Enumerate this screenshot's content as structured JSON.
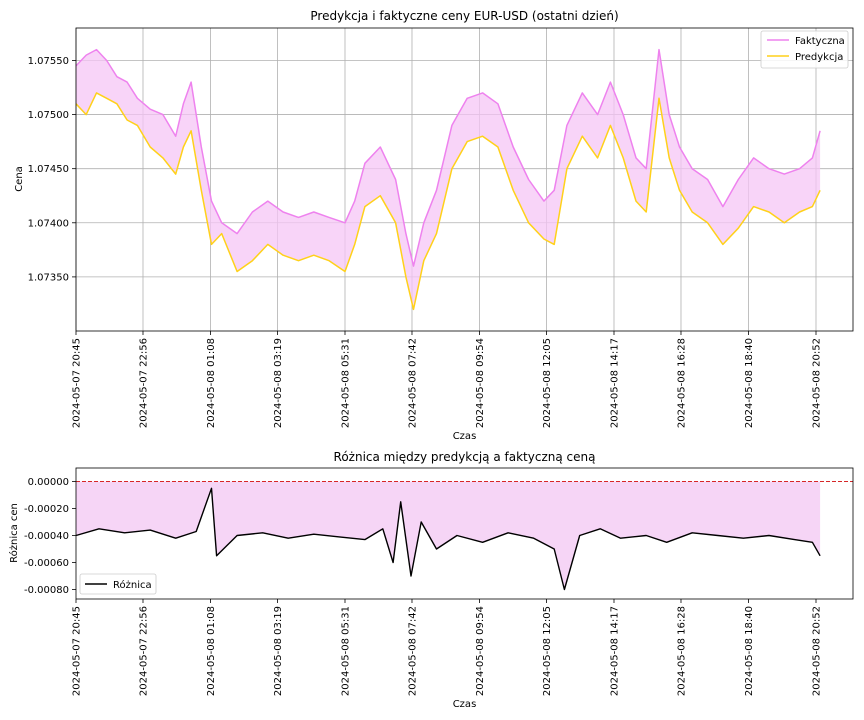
{
  "chart_data": [
    {
      "type": "line",
      "title": "Predykcja i faktyczne ceny EUR-USD (ostatni dzień)",
      "xlabel": "Czas",
      "ylabel": "Cena",
      "ylim": [
        1.073,
        1.0758
      ],
      "yticks": [
        "1.07350",
        "1.07400",
        "1.07450",
        "1.07500",
        "1.07550"
      ],
      "xticks": [
        "2024-05-07 20:45",
        "2024-05-07 22:56",
        "2024-05-08 01:08",
        "2024-05-08 03:19",
        "2024-05-08 05:31",
        "2024-05-08 07:42",
        "2024-05-08 09:54",
        "2024-05-08 12:05",
        "2024-05-08 14:17",
        "2024-05-08 16:28",
        "2024-05-08 18:40",
        "2024-05-08 20:52"
      ],
      "grid": true,
      "legend_position": "top-right",
      "fill_between": "Faktyczna / Predykcja",
      "series": [
        {
          "name": "Faktyczna",
          "color": "#ee82ee",
          "points": [
            [
              "2024-05-07 20:45",
              1.07545
            ],
            [
              "2024-05-07 21:05",
              1.07555
            ],
            [
              "2024-05-07 21:25",
              1.0756
            ],
            [
              "2024-05-07 21:45",
              1.0755
            ],
            [
              "2024-05-07 22:05",
              1.07535
            ],
            [
              "2024-05-07 22:25",
              1.0753
            ],
            [
              "2024-05-07 22:45",
              1.07515
            ],
            [
              "2024-05-07 23:10",
              1.07505
            ],
            [
              "2024-05-07 23:35",
              1.075
            ],
            [
              "2024-05-08 00:00",
              1.0748
            ],
            [
              "2024-05-08 00:15",
              1.0751
            ],
            [
              "2024-05-08 00:30",
              1.0753
            ],
            [
              "2024-05-08 00:50",
              1.0747
            ],
            [
              "2024-05-08 01:10",
              1.0742
            ],
            [
              "2024-05-08 01:30",
              1.074
            ],
            [
              "2024-05-08 02:00",
              1.0739
            ],
            [
              "2024-05-08 02:30",
              1.0741
            ],
            [
              "2024-05-08 03:00",
              1.0742
            ],
            [
              "2024-05-08 03:30",
              1.0741
            ],
            [
              "2024-05-08 04:00",
              1.07405
            ],
            [
              "2024-05-08 04:30",
              1.0741
            ],
            [
              "2024-05-08 05:00",
              1.07405
            ],
            [
              "2024-05-08 05:31",
              1.074
            ],
            [
              "2024-05-08 05:50",
              1.0742
            ],
            [
              "2024-05-08 06:10",
              1.07455
            ],
            [
              "2024-05-08 06:40",
              1.0747
            ],
            [
              "2024-05-08 07:10",
              1.0744
            ],
            [
              "2024-05-08 07:30",
              1.0739
            ],
            [
              "2024-05-08 07:45",
              1.0736
            ],
            [
              "2024-05-08 08:05",
              1.074
            ],
            [
              "2024-05-08 08:30",
              1.0743
            ],
            [
              "2024-05-08 09:00",
              1.0749
            ],
            [
              "2024-05-08 09:30",
              1.07515
            ],
            [
              "2024-05-08 10:00",
              1.0752
            ],
            [
              "2024-05-08 10:30",
              1.0751
            ],
            [
              "2024-05-08 11:00",
              1.0747
            ],
            [
              "2024-05-08 11:30",
              1.0744
            ],
            [
              "2024-05-08 12:00",
              1.0742
            ],
            [
              "2024-05-08 12:20",
              1.0743
            ],
            [
              "2024-05-08 12:45",
              1.0749
            ],
            [
              "2024-05-08 13:15",
              1.0752
            ],
            [
              "2024-05-08 13:45",
              1.075
            ],
            [
              "2024-05-08 14:10",
              1.0753
            ],
            [
              "2024-05-08 14:35",
              1.075
            ],
            [
              "2024-05-08 15:00",
              1.0746
            ],
            [
              "2024-05-08 15:20",
              1.0745
            ],
            [
              "2024-05-08 15:45",
              1.0756
            ],
            [
              "2024-05-08 16:05",
              1.075
            ],
            [
              "2024-05-08 16:25",
              1.0747
            ],
            [
              "2024-05-08 16:50",
              1.0745
            ],
            [
              "2024-05-08 17:20",
              1.0744
            ],
            [
              "2024-05-08 17:50",
              1.07415
            ],
            [
              "2024-05-08 18:20",
              1.0744
            ],
            [
              "2024-05-08 18:50",
              1.0746
            ],
            [
              "2024-05-08 19:20",
              1.0745
            ],
            [
              "2024-05-08 19:50",
              1.07445
            ],
            [
              "2024-05-08 20:20",
              1.0745
            ],
            [
              "2024-05-08 20:45",
              1.0746
            ],
            [
              "2024-05-08 21:00",
              1.07485
            ]
          ]
        },
        {
          "name": "Predykcja",
          "color": "#ffd11a",
          "points": [
            [
              "2024-05-07 20:45",
              1.0751
            ],
            [
              "2024-05-07 21:05",
              1.075
            ],
            [
              "2024-05-07 21:25",
              1.0752
            ],
            [
              "2024-05-07 21:45",
              1.07515
            ],
            [
              "2024-05-07 22:05",
              1.0751
            ],
            [
              "2024-05-07 22:25",
              1.07495
            ],
            [
              "2024-05-07 22:45",
              1.0749
            ],
            [
              "2024-05-07 23:10",
              1.0747
            ],
            [
              "2024-05-07 23:35",
              1.0746
            ],
            [
              "2024-05-08 00:00",
              1.07445
            ],
            [
              "2024-05-08 00:15",
              1.0747
            ],
            [
              "2024-05-08 00:30",
              1.07485
            ],
            [
              "2024-05-08 00:50",
              1.0743
            ],
            [
              "2024-05-08 01:10",
              1.0738
            ],
            [
              "2024-05-08 01:30",
              1.0739
            ],
            [
              "2024-05-08 02:00",
              1.07355
            ],
            [
              "2024-05-08 02:30",
              1.07365
            ],
            [
              "2024-05-08 03:00",
              1.0738
            ],
            [
              "2024-05-08 03:30",
              1.0737
            ],
            [
              "2024-05-08 04:00",
              1.07365
            ],
            [
              "2024-05-08 04:30",
              1.0737
            ],
            [
              "2024-05-08 05:00",
              1.07365
            ],
            [
              "2024-05-08 05:31",
              1.07355
            ],
            [
              "2024-05-08 05:50",
              1.0738
            ],
            [
              "2024-05-08 06:10",
              1.07415
            ],
            [
              "2024-05-08 06:40",
              1.07425
            ],
            [
              "2024-05-08 07:10",
              1.074
            ],
            [
              "2024-05-08 07:30",
              1.0735
            ],
            [
              "2024-05-08 07:45",
              1.0732
            ],
            [
              "2024-05-08 08:05",
              1.07365
            ],
            [
              "2024-05-08 08:30",
              1.0739
            ],
            [
              "2024-05-08 09:00",
              1.0745
            ],
            [
              "2024-05-08 09:30",
              1.07475
            ],
            [
              "2024-05-08 10:00",
              1.0748
            ],
            [
              "2024-05-08 10:30",
              1.0747
            ],
            [
              "2024-05-08 11:00",
              1.0743
            ],
            [
              "2024-05-08 11:30",
              1.074
            ],
            [
              "2024-05-08 12:00",
              1.07385
            ],
            [
              "2024-05-08 12:20",
              1.0738
            ],
            [
              "2024-05-08 12:45",
              1.0745
            ],
            [
              "2024-05-08 13:15",
              1.0748
            ],
            [
              "2024-05-08 13:45",
              1.0746
            ],
            [
              "2024-05-08 14:10",
              1.0749
            ],
            [
              "2024-05-08 14:35",
              1.0746
            ],
            [
              "2024-05-08 15:00",
              1.0742
            ],
            [
              "2024-05-08 15:20",
              1.0741
            ],
            [
              "2024-05-08 15:45",
              1.07515
            ],
            [
              "2024-05-08 16:05",
              1.0746
            ],
            [
              "2024-05-08 16:25",
              1.0743
            ],
            [
              "2024-05-08 16:50",
              1.0741
            ],
            [
              "2024-05-08 17:20",
              1.074
            ],
            [
              "2024-05-08 17:50",
              1.0738
            ],
            [
              "2024-05-08 18:20",
              1.07395
            ],
            [
              "2024-05-08 18:50",
              1.07415
            ],
            [
              "2024-05-08 19:20",
              1.0741
            ],
            [
              "2024-05-08 19:50",
              1.074
            ],
            [
              "2024-05-08 20:20",
              1.0741
            ],
            [
              "2024-05-08 20:45",
              1.07415
            ],
            [
              "2024-05-08 21:00",
              1.0743
            ]
          ]
        }
      ]
    },
    {
      "type": "line",
      "title": "Różnica między predykcją a faktyczną ceną",
      "xlabel": "Czas",
      "ylabel": "Różnica cen",
      "ylim": [
        -0.00087,
        0.0001
      ],
      "yticks": [
        "-0.00080",
        "-0.00060",
        "-0.00040",
        "-0.00020",
        "0.00000"
      ],
      "xticks": [
        "2024-05-07 20:45",
        "2024-05-07 22:56",
        "2024-05-08 01:08",
        "2024-05-08 03:19",
        "2024-05-08 05:31",
        "2024-05-08 07:42",
        "2024-05-08 09:54",
        "2024-05-08 12:05",
        "2024-05-08 14:17",
        "2024-05-08 16:28",
        "2024-05-08 18:40",
        "2024-05-08 20:52"
      ],
      "grid": false,
      "legend_position": "bottom-left",
      "zero_line_color": "#d62728",
      "fill_color": "#f5d0f5",
      "series": [
        {
          "name": "Różnica",
          "color": "#000000",
          "points": [
            [
              "2024-05-07 20:45",
              -0.0004
            ],
            [
              "2024-05-07 21:30",
              -0.00035
            ],
            [
              "2024-05-07 22:20",
              -0.00038
            ],
            [
              "2024-05-07 23:10",
              -0.00036
            ],
            [
              "2024-05-08 00:00",
              -0.00042
            ],
            [
              "2024-05-08 00:40",
              -0.00037
            ],
            [
              "2024-05-08 01:10",
              -5e-05
            ],
            [
              "2024-05-08 01:20",
              -0.00055
            ],
            [
              "2024-05-08 02:00",
              -0.0004
            ],
            [
              "2024-05-08 02:50",
              -0.00038
            ],
            [
              "2024-05-08 03:40",
              -0.00042
            ],
            [
              "2024-05-08 04:30",
              -0.00039
            ],
            [
              "2024-05-08 05:20",
              -0.00041
            ],
            [
              "2024-05-08 06:10",
              -0.00043
            ],
            [
              "2024-05-08 06:45",
              -0.00035
            ],
            [
              "2024-05-08 07:05",
              -0.0006
            ],
            [
              "2024-05-08 07:20",
              -0.00015
            ],
            [
              "2024-05-08 07:40",
              -0.0007
            ],
            [
              "2024-05-08 08:00",
              -0.0003
            ],
            [
              "2024-05-08 08:30",
              -0.0005
            ],
            [
              "2024-05-08 09:10",
              -0.0004
            ],
            [
              "2024-05-08 10:00",
              -0.00045
            ],
            [
              "2024-05-08 10:50",
              -0.00038
            ],
            [
              "2024-05-08 11:40",
              -0.00042
            ],
            [
              "2024-05-08 12:20",
              -0.0005
            ],
            [
              "2024-05-08 12:40",
              -0.0008
            ],
            [
              "2024-05-08 13:10",
              -0.0004
            ],
            [
              "2024-05-08 13:50",
              -0.00035
            ],
            [
              "2024-05-08 14:30",
              -0.00042
            ],
            [
              "2024-05-08 15:20",
              -0.0004
            ],
            [
              "2024-05-08 16:00",
              -0.00045
            ],
            [
              "2024-05-08 16:50",
              -0.00038
            ],
            [
              "2024-05-08 17:40",
              -0.0004
            ],
            [
              "2024-05-08 18:30",
              -0.00042
            ],
            [
              "2024-05-08 19:20",
              -0.0004
            ],
            [
              "2024-05-08 20:10",
              -0.00043
            ],
            [
              "2024-05-08 20:45",
              -0.00045
            ],
            [
              "2024-05-08 21:00",
              -0.00055
            ]
          ]
        }
      ]
    }
  ]
}
